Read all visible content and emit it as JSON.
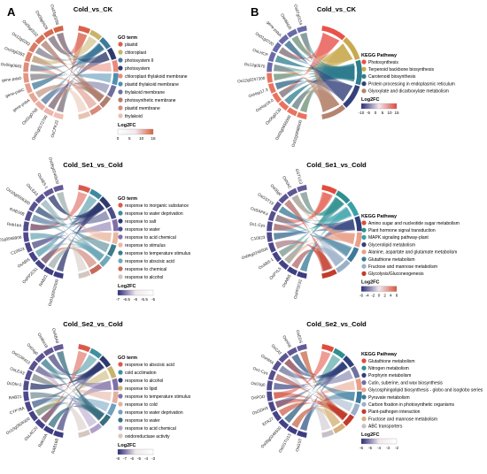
{
  "panels": [
    {
      "letter": "A",
      "title": "Cold_vs_CK",
      "legend_title": "GO term",
      "terms": [
        "plastid",
        "chloroplast",
        "photosystem II",
        "photosystem",
        "chloroplast thylakoid membrane",
        "plastid thylakoid membrane",
        "thylakoid membrane",
        "photosynthetic membrane",
        "plastid membrane",
        "thylakoid"
      ],
      "colors": [
        "#d9604a",
        "#c9b36b",
        "#3f7a9a",
        "#2e3a6e",
        "#e98a7a",
        "#4f8fb0",
        "#6f6f9f",
        "#b07e6f",
        "#d98a7a",
        "#e7c3b0"
      ],
      "genes": [
        "OsCPK22",
        "Os01g0172700",
        "Os02g0768",
        "gene-psbA",
        "gene-psbC",
        "gene-psbD",
        "Os06g0683",
        "Os10g0393",
        "Os12g0292",
        "Os05g0522",
        "Os09g0428",
        "Os03g0296"
      ],
      "fc_label": "Log2FC",
      "fc_ticks": [
        "0",
        "5",
        "10",
        "15"
      ],
      "fc_colors": [
        "#ffffff",
        "#d95f3b"
      ]
    },
    {
      "letter": "B",
      "title": "Cold_vs_CK",
      "legend_title": "KEGG Pathway",
      "terms": [
        "Photosynthesis",
        "Terpenoid backbone biosynthesis",
        "Carotenoid biosynthesis",
        "Protein processing in endoplasmic reticulum",
        "Glyoxylate and dicarboxylate metabolism"
      ],
      "colors": [
        "#e8524a",
        "#c9a94f",
        "#2f7d8f",
        "#33407a",
        "#b5836e"
      ],
      "genes": [
        "Os02g0698000",
        "Os03g0656000",
        "Os06g0139",
        "OsHsp18.0",
        "OsHsp17.3",
        "Os12g0257300",
        "Os12g0570",
        "OsLHCP",
        "Os01g0720",
        "gene-psbA",
        "OsHMGR",
        "Os07g0154"
      ],
      "fc_label": "Log2FC",
      "fc_ticks": [
        "-10",
        "-5",
        "0",
        "5",
        "10",
        "15"
      ],
      "fc_colors": [
        "#2a2a7a",
        "#e2473b"
      ]
    },
    {
      "letter": "",
      "title": "Cold_Se1_vs_Cold",
      "legend_title": "GO term",
      "terms": [
        "response to inorganic substance",
        "response to water deprivation",
        "response to salt",
        "response to water",
        "response to acid chemical",
        "response to stimulus",
        "response to temperature stimulus",
        "response to abscisic acid",
        "response to chemical",
        "response to alcohol"
      ],
      "colors": [
        "#d85a4a",
        "#3a8aa0",
        "#2e3a6e",
        "#4b4f86",
        "#7f6fa8",
        "#e9b8a0",
        "#3d7a8a",
        "#6fa8b8",
        "#c76a5b",
        "#d2c6c0"
      ],
      "genes": [
        "Os01g0502000",
        "RAB21",
        "OsPP2C51",
        "OsABI5",
        "C10923",
        "Os01g0958900",
        "Rab16A",
        "RAB16B",
        "Os10g0506300",
        "OsLEA3",
        "OsABS-1",
        "Os06g0246500"
      ],
      "fc_label": "Log2FC",
      "fc_ticks": [
        "-7",
        "-6.5",
        "-6",
        "-5.5",
        "-5"
      ],
      "fc_colors": [
        "#2a2a7a",
        "#ffffff"
      ]
    },
    {
      "letter": "",
      "title": "Cold_Se1_vs_Cold",
      "legend_title": "KEGG Pathway",
      "terms": [
        "Amino sugar and nucleotide sugar metabolism",
        "Plant hormone signal transduction",
        "MAPK signaling pathway-plant",
        "Glycerolipid metabolism",
        "Alanine, aspartate and glutamate metabolism",
        "Glutathione metabolism",
        "Fructose and mannose metabolism",
        "Glycolysis/Gluconeogenesis"
      ],
      "colors": [
        "#e14b3c",
        "#2f8f8f",
        "#3aa0a8",
        "#30407a",
        "#e8a08a",
        "#3b7a9a",
        "#9ab0c8",
        "#c23b2b"
      ],
      "genes": [
        "OsPP2C51",
        "OsABI5",
        "OsPYL5",
        "OsABS-1",
        "Os06g0246500",
        "C10923",
        "Os1-Cys",
        "OsSAPK4",
        "OsGST19",
        "Os08g0",
        "OsNAC",
        "GSTU13"
      ],
      "fc_label": "Log2FC",
      "fc_ticks": [
        "-6",
        "-4",
        "-2",
        "0",
        "2",
        "4",
        "6"
      ],
      "fc_colors": [
        "#2a2a7a",
        "#d9543b"
      ]
    },
    {
      "letter": "",
      "title": "Cold_Se2_vs_Cold",
      "legend_title": "GO term",
      "terms": [
        "response to abscisic acid",
        "cold acclimation",
        "response to alcohol",
        "response to lipid",
        "response to temperature stimulus",
        "response to cold",
        "response to water deprivation",
        "response to water",
        "response to acid chemical",
        "oxidoreductase activity"
      ],
      "colors": [
        "#d85a4a",
        "#3f8fa0",
        "#2e3a6e",
        "#c9b36b",
        "#7f6fa8",
        "#e3b0a0",
        "#6fa0c0",
        "#3a6f80",
        "#b0a0c8",
        "#d5c7c0"
      ],
      "genes": [
        "RAB16B",
        "Rab16A",
        "OsLAC20",
        "Os10g0506300",
        "CYP78A",
        "RAB21",
        "OsDhn1",
        "OsLEA3",
        "OsCOR413",
        "Os04g0",
        "OsWsi18",
        "OsABA8"
      ],
      "fc_label": "Log2FC",
      "fc_ticks": [
        "-8",
        "-7",
        "-6",
        "-5",
        "-4",
        "-3"
      ],
      "fc_colors": [
        "#2a2a7a",
        "#ffffff"
      ]
    },
    {
      "letter": "",
      "title": "Cold_Se2_vs_Cold",
      "legend_title": "KEGG Pathway",
      "terms": [
        "Glutathione metabolism",
        "Nitrogen metabolism",
        "Porphyrin metabolism",
        "Cutin, suberine, and wax biosynthesis",
        "Glycosphingolipid biosynthesis - globo and isoglobo series",
        "Pyruvate metabolism",
        "Carbon fixation in photosynthetic organisms",
        "Plant-pathogen interaction",
        "Fructose and mannose metabolism",
        "ABC transporters"
      ],
      "colors": [
        "#e14b3c",
        "#2f8f8f",
        "#30407a",
        "#6f6fa0",
        "#e8a08a",
        "#3b7a9a",
        "#9ab0c8",
        "#c23b2b",
        "#d6b07a",
        "#c7c0c8"
      ],
      "genes": [
        "OsGST",
        "OsGSTU13",
        "Os08g0246500",
        "EFA27",
        "OsGDH3",
        "OsPOD",
        "Os01g0",
        "Os1-Cys",
        "OsHMA",
        "OsCAT",
        "OsHXK",
        "OsEDS"
      ],
      "fc_label": "Log2FC",
      "fc_ticks": [
        "-6",
        "-5",
        "-4",
        "-3",
        "-2"
      ],
      "fc_colors": [
        "#2a2a7a",
        "#ffffff"
      ]
    }
  ]
}
